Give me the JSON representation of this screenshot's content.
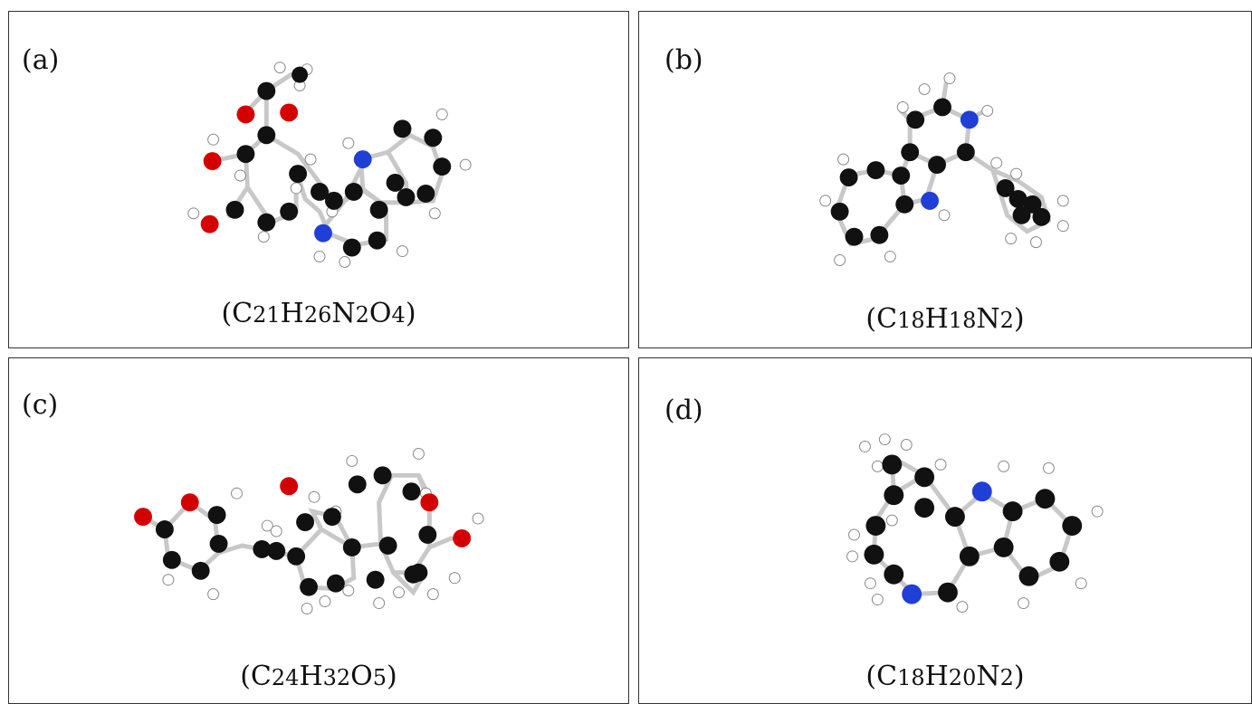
{
  "colors": {
    "carbon": "#111111",
    "hydrogen": "#ffffff",
    "nitrogen": "#1f3fd6",
    "oxygen": "#d40000",
    "bond": "#c8c8c8",
    "border": "#333333"
  },
  "panels": [
    {
      "label": "(a)",
      "formula_parts": [
        {
          "t": "(C"
        },
        {
          "t": "21",
          "sub": true
        },
        {
          "t": "H"
        },
        {
          "t": "26",
          "sub": true
        },
        {
          "t": "N"
        },
        {
          "t": "2",
          "sub": true
        },
        {
          "t": "O"
        },
        {
          "t": "4",
          "sub": true
        },
        {
          "t": ")"
        }
      ]
    },
    {
      "label": "(b)",
      "formula_parts": [
        {
          "t": "(C"
        },
        {
          "t": "18",
          "sub": true
        },
        {
          "t": "H"
        },
        {
          "t": "18",
          "sub": true
        },
        {
          "t": "N"
        },
        {
          "t": "2",
          "sub": true
        },
        {
          "t": ")"
        }
      ]
    },
    {
      "label": "(c)",
      "formula_parts": [
        {
          "t": "(C"
        },
        {
          "t": "24",
          "sub": true
        },
        {
          "t": "H"
        },
        {
          "t": "32",
          "sub": true
        },
        {
          "t": "O"
        },
        {
          "t": "5",
          "sub": true
        },
        {
          "t": ")"
        }
      ]
    },
    {
      "label": "(d)",
      "formula_parts": [
        {
          "t": "(C"
        },
        {
          "t": "18",
          "sub": true
        },
        {
          "t": "H"
        },
        {
          "t": "20",
          "sub": true
        },
        {
          "t": "N"
        },
        {
          "t": "2",
          "sub": true
        },
        {
          "t": ")"
        }
      ]
    }
  ]
}
